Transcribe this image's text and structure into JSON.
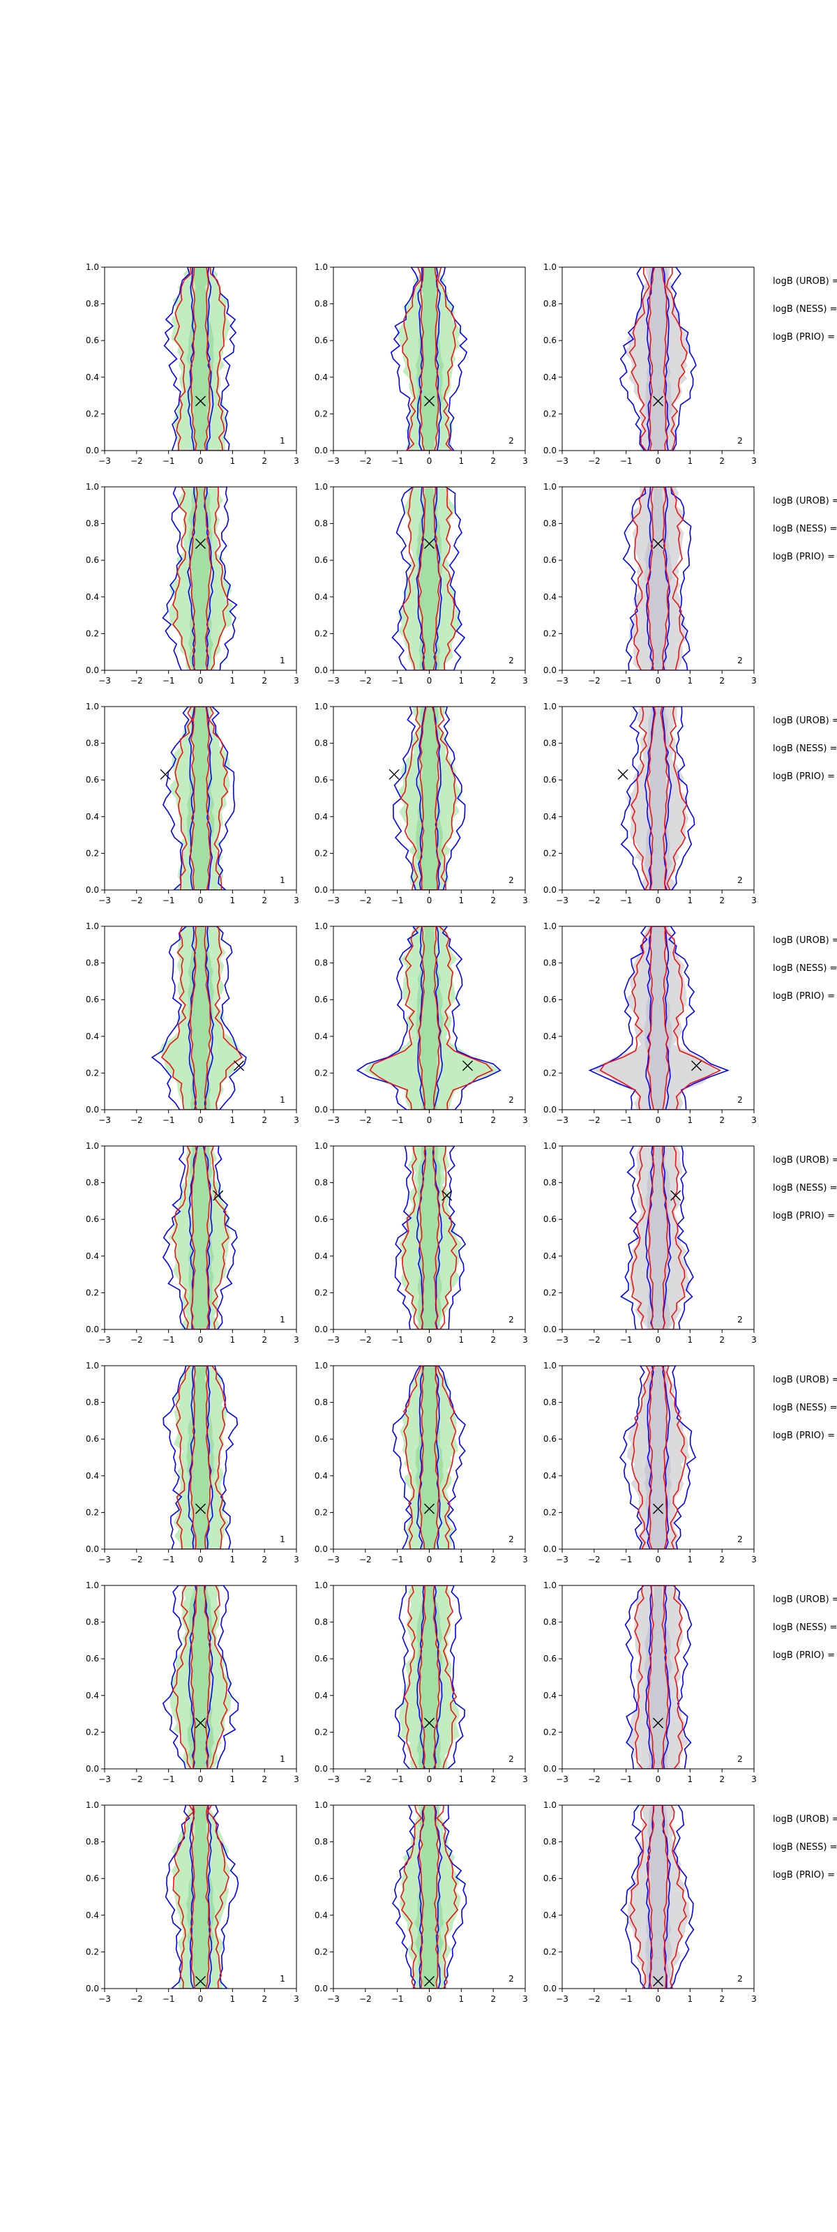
{
  "chart_data": {
    "type": "contour",
    "description_rows": 8,
    "columns": 3,
    "xlim": [
      -3,
      3
    ],
    "ylim": [
      0,
      1
    ],
    "x_ticks": [
      -3,
      -2,
      -1,
      0,
      1,
      2,
      3
    ],
    "x_tick_labels": [
      "−3",
      "−2",
      "−1",
      "0",
      "1",
      "2",
      "3"
    ],
    "y_ticks": [
      0,
      0.2,
      0.4,
      0.6,
      0.8,
      1
    ],
    "y_tick_labels": [
      "0.0",
      "0.2",
      "0.4",
      "0.6",
      "0.8",
      "1.0"
    ],
    "panel_labels": [
      "1",
      "2",
      "2"
    ],
    "row_annotations": [
      "logB (UROB) =",
      "logB (NESS) =",
      "logB (PRIO) ="
    ],
    "truth_markers": [
      {
        "x": 0.0,
        "y": 0.27
      },
      {
        "x": 0.0,
        "y": 0.69
      },
      {
        "x": -1.1,
        "y": 0.63
      },
      {
        "x": 1.2,
        "y": 0.24
      },
      {
        "x": 0.55,
        "y": 0.73
      },
      {
        "x": 0.0,
        "y": 0.22
      },
      {
        "x": 0.0,
        "y": 0.25
      },
      {
        "x": 0.0,
        "y": 0.04
      }
    ],
    "colors": {
      "blue_contour": "#0000ff",
      "red_contour": "#ee1111",
      "green_fill": "#9fe3a0",
      "grey_fill": "#c8c8cc",
      "axis": "#000000"
    }
  }
}
